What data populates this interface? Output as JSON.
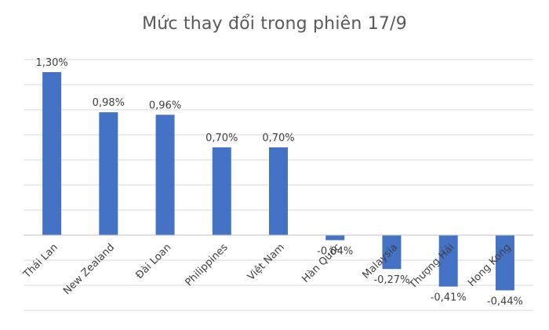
{
  "chart_data": {
    "type": "bar",
    "title": "Mức thay đổi trong phiên 17/9",
    "xlabel": "",
    "ylabel": "",
    "categories": [
      "Thái Lan",
      "New Zealand",
      "Đài Loan",
      "Philippines",
      "Việt Nam",
      "Hàn Quốc",
      "Malaysia",
      "Thượng Hải",
      "Hong Kong"
    ],
    "values": [
      1.3,
      0.98,
      0.96,
      0.7,
      0.7,
      -0.04,
      -0.27,
      -0.41,
      -0.44
    ],
    "value_labels": [
      "1,30%",
      "0,98%",
      "0,96%",
      "0,70%",
      "0,70%",
      "-0,04%",
      "-0,27%",
      "-0,41%",
      "-0,44%"
    ],
    "ylim": [
      -0.6,
      1.4
    ],
    "gridlines": true,
    "legend": "none",
    "bar_color": "#4472C4"
  }
}
